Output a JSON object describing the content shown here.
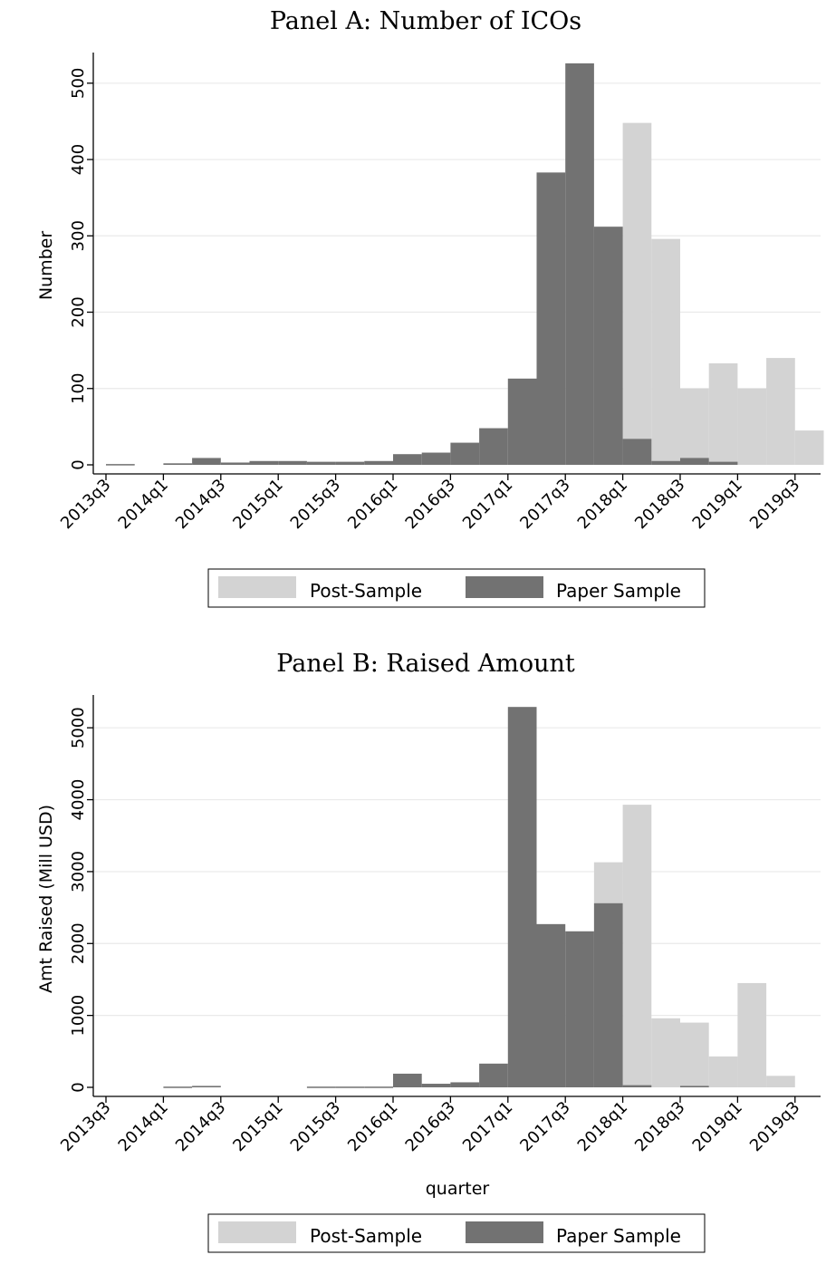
{
  "colors": {
    "post_sample": "#d3d3d3",
    "paper_sample": "#727272",
    "grid": "#eaeaea",
    "axis": "#000000"
  },
  "chart_data": [
    {
      "type": "bar",
      "title": "Panel A: Number of ICOs",
      "xlabel": "",
      "ylabel": "Number",
      "ylim": [
        0,
        500
      ],
      "yticks": [
        "0",
        "100",
        "200",
        "300",
        "400",
        "500"
      ],
      "ytick_values": [
        0,
        100,
        200,
        300,
        400,
        500
      ],
      "categories": [
        "2013q3",
        "2013q4",
        "2014q1",
        "2014q2",
        "2014q3",
        "2014q4",
        "2015q1",
        "2015q2",
        "2015q3",
        "2015q4",
        "2016q1",
        "2016q2",
        "2016q3",
        "2016q4",
        "2017q1",
        "2017q2",
        "2017q3",
        "2017q4",
        "2018q1",
        "2018q2",
        "2018q3",
        "2018q4",
        "2019q1",
        "2019q2",
        "2019q3"
      ],
      "xtick_labels": [
        "2013q3",
        "2014q1",
        "2014q3",
        "2015q1",
        "2015q3",
        "2016q1",
        "2016q3",
        "2017q1",
        "2017q3",
        "2018q1",
        "2018q3",
        "2019q1",
        "2019q3"
      ],
      "series": [
        {
          "name": "Post-Sample",
          "values": [
            1,
            0,
            0,
            0,
            0,
            0,
            0,
            0,
            0,
            0,
            0,
            0,
            0,
            0,
            0,
            0,
            0,
            0,
            448,
            296,
            100,
            133,
            100,
            140,
            45
          ]
        },
        {
          "name": "Paper Sample",
          "values": [
            1,
            0,
            2,
            9,
            3,
            5,
            5,
            4,
            4,
            5,
            14,
            16,
            29,
            48,
            113,
            383,
            526,
            312,
            34,
            5,
            9,
            4,
            0,
            0,
            0
          ]
        }
      ],
      "grid": true,
      "legend_position": "bottom"
    },
    {
      "type": "bar",
      "title": "Panel B: Raised Amount",
      "xlabel": "quarter",
      "ylabel": "Amt Raised (Mill USD)",
      "ylim": [
        0,
        5000
      ],
      "yticks": [
        "0",
        "1000",
        "2000",
        "3000",
        "4000",
        "5000"
      ],
      "ytick_values": [
        0,
        1000,
        2000,
        3000,
        4000,
        5000
      ],
      "categories": [
        "2013q3",
        "2013q4",
        "2014q1",
        "2014q2",
        "2014q3",
        "2014q4",
        "2015q1",
        "2015q2",
        "2015q3",
        "2015q4",
        "2016q1",
        "2016q2",
        "2016q3",
        "2016q4",
        "2017q1",
        "2017q2",
        "2017q3",
        "2017q4",
        "2018q1",
        "2018q2",
        "2018q3",
        "2018q4",
        "2019q1",
        "2019q2",
        "2019q3"
      ],
      "xtick_labels": [
        "2013q3",
        "2014q1",
        "2014q3",
        "2015q1",
        "2015q3",
        "2016q1",
        "2016q3",
        "2017q1",
        "2017q3",
        "2018q1",
        "2018q3",
        "2019q1",
        "2019q3"
      ],
      "series": [
        {
          "name": "Post-Sample",
          "values": [
            0,
            0,
            0,
            0,
            0,
            0,
            0,
            0,
            0,
            0,
            0,
            0,
            0,
            0,
            0,
            0,
            0,
            3130,
            3930,
            960,
            900,
            430,
            1450,
            160,
            0
          ]
        },
        {
          "name": "Paper Sample",
          "values": [
            0,
            0,
            10,
            20,
            0,
            0,
            0,
            10,
            10,
            10,
            190,
            50,
            70,
            330,
            5290,
            2270,
            2170,
            2560,
            30,
            0,
            20,
            0,
            0,
            0,
            0
          ]
        }
      ],
      "grid": true,
      "legend_position": "bottom"
    }
  ]
}
